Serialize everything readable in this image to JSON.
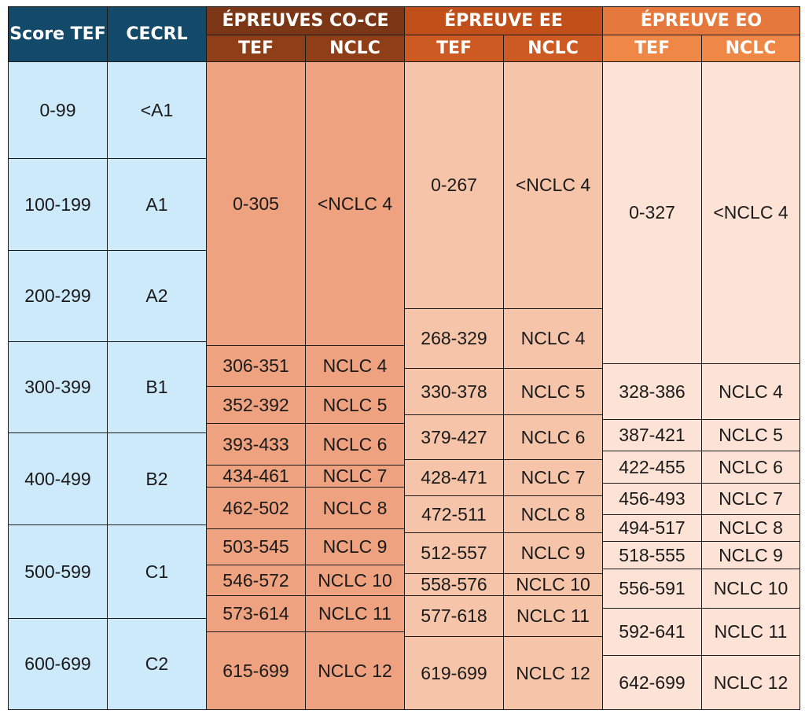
{
  "headers": {
    "score_tef": "Score TEF",
    "cecrl": "CECRL",
    "co_ce": "ÉPREUVES CO-CE",
    "ee": "ÉPREUVE EE",
    "eo": "ÉPREUVE EO",
    "tef": "TEF",
    "nclc": "NCLC"
  },
  "score_rows": [
    {
      "score": "0-99",
      "cecrl": "<A1"
    },
    {
      "score": "100-199",
      "cecrl": "A1"
    },
    {
      "score": "200-299",
      "cecrl": "A2"
    },
    {
      "score": "300-399",
      "cecrl": "B1"
    },
    {
      "score": "400-499",
      "cecrl": "B2"
    },
    {
      "score": "500-599",
      "cecrl": "C1"
    },
    {
      "score": "600-699",
      "cecrl": "C2"
    }
  ],
  "co_ce": [
    {
      "tef": "0-305",
      "nclc": "<NCLC 4"
    },
    {
      "tef": "306-351",
      "nclc": "NCLC 4"
    },
    {
      "tef": "352-392",
      "nclc": "NCLC 5"
    },
    {
      "tef": "393-433",
      "nclc": "NCLC 6"
    },
    {
      "tef": "434-461",
      "nclc": "NCLC 7"
    },
    {
      "tef": "462-502",
      "nclc": "NCLC 8"
    },
    {
      "tef": "503-545",
      "nclc": "NCLC 9"
    },
    {
      "tef": "546-572",
      "nclc": "NCLC 10"
    },
    {
      "tef": "573-614",
      "nclc": "NCLC 11"
    },
    {
      "tef": "615-699",
      "nclc": "NCLC 12"
    }
  ],
  "ee": [
    {
      "tef": "0-267",
      "nclc": "<NCLC 4"
    },
    {
      "tef": "268-329",
      "nclc": "NCLC 4"
    },
    {
      "tef": "330-378",
      "nclc": "NCLC 5"
    },
    {
      "tef": "379-427",
      "nclc": "NCLC 6"
    },
    {
      "tef": "428-471",
      "nclc": "NCLC 7"
    },
    {
      "tef": "472-511",
      "nclc": "NCLC 8"
    },
    {
      "tef": "512-557",
      "nclc": "NCLC 9"
    },
    {
      "tef": "558-576",
      "nclc": "NCLC 10"
    },
    {
      "tef": "577-618",
      "nclc": "NCLC 11"
    },
    {
      "tef": "619-699",
      "nclc": "NCLC 12"
    }
  ],
  "eo": [
    {
      "tef": "0-327",
      "nclc": "<NCLC 4"
    },
    {
      "tef": "328-386",
      "nclc": "NCLC 4"
    },
    {
      "tef": "387-421",
      "nclc": "NCLC 5"
    },
    {
      "tef": "422-455",
      "nclc": "NCLC 6"
    },
    {
      "tef": "456-493",
      "nclc": "NCLC 7"
    },
    {
      "tef": "494-517",
      "nclc": "NCLC 8"
    },
    {
      "tef": "518-555",
      "nclc": "NCLC 9"
    },
    {
      "tef": "556-591",
      "nclc": "NCLC 10"
    },
    {
      "tef": "592-641",
      "nclc": "NCLC 11"
    },
    {
      "tef": "642-699",
      "nclc": "NCLC 12"
    }
  ]
}
